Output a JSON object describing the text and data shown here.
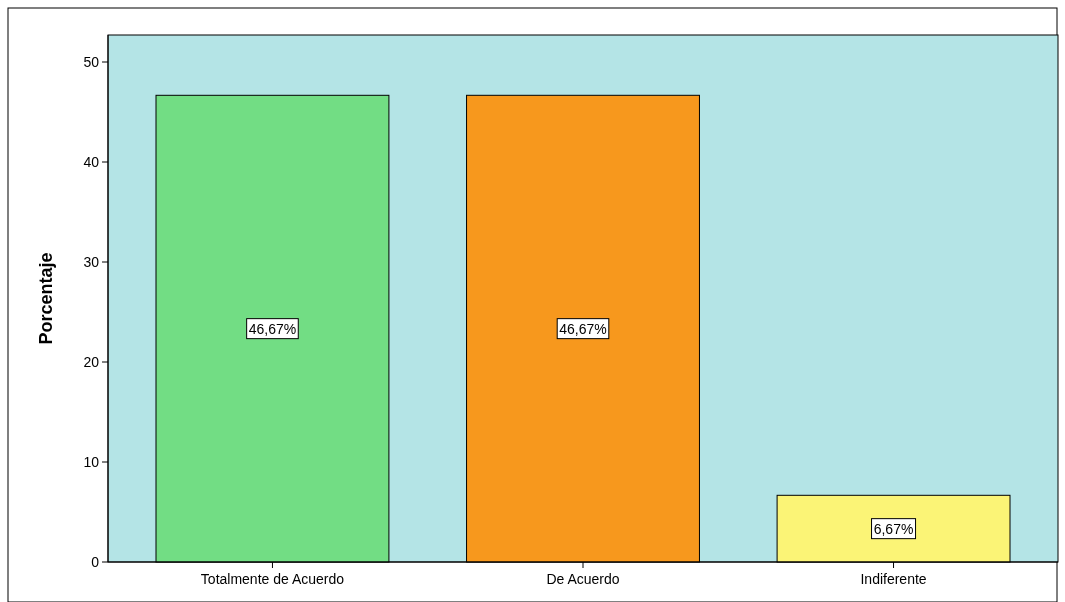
{
  "chart_data": {
    "type": "bar",
    "ylabel": "Porcentaje",
    "categories": [
      "Totalmente de Acuerdo",
      "De Acuerdo",
      "Indiferente"
    ],
    "values": [
      46.67,
      46.67,
      6.67
    ],
    "colors": [
      "#72dd84",
      "#f7981d",
      "#fbf476"
    ],
    "value_labels": [
      "46,67%",
      "46,67%",
      "6,67%"
    ],
    "ylim": [
      0,
      52.7
    ],
    "yticks": [
      0,
      10,
      20,
      30,
      40,
      50
    ],
    "grid": false
  }
}
